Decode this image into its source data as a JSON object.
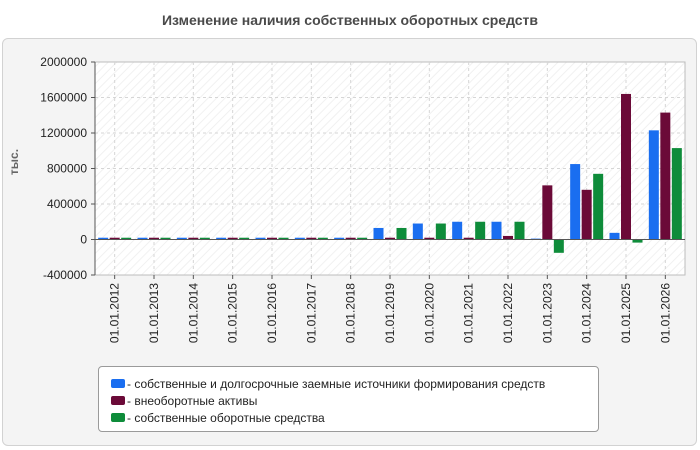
{
  "chart_data": {
    "type": "bar",
    "title": "Изменение наличия собственных оборотных средств",
    "ylabel": "тыс.",
    "xlabel": "",
    "ylim": [
      -400000,
      2000000
    ],
    "yticks": [
      -400000,
      0,
      400000,
      800000,
      1200000,
      1600000,
      2000000
    ],
    "ytick_labels": [
      "-400000",
      "0",
      "400000",
      "800000",
      "1200000",
      "1600000",
      "2000000"
    ],
    "grid": true,
    "legend_position": "bottom",
    "categories": [
      "01.01.2012",
      "01.01.2013",
      "01.01.2014",
      "01.01.2015",
      "01.01.2016",
      "01.01.2017",
      "01.01.2018",
      "01.01.2019",
      "01.01.2020",
      "01.01.2021",
      "01.01.2022",
      "01.01.2023",
      "01.01.2024",
      "01.01.2025",
      "01.01.2026"
    ],
    "series": [
      {
        "name": "- собственные и долгосрочные заемные источники формирования средств",
        "color": "#1a6ef0",
        "values": [
          20000,
          20000,
          20000,
          20000,
          20000,
          20000,
          20000,
          130000,
          180000,
          200000,
          200000,
          10000,
          850000,
          75000,
          1230000
        ]
      },
      {
        "name": "- внеоборотные активы",
        "color": "#6b0a38",
        "values": [
          20000,
          20000,
          20000,
          20000,
          20000,
          20000,
          20000,
          20000,
          20000,
          20000,
          40000,
          610000,
          560000,
          1640000,
          1430000
        ]
      },
      {
        "name": "- собственные оборотные средства",
        "color": "#0e8c3a",
        "values": [
          20000,
          20000,
          20000,
          20000,
          20000,
          20000,
          20000,
          130000,
          180000,
          200000,
          200000,
          -150000,
          740000,
          -35000,
          1030000
        ]
      }
    ]
  }
}
